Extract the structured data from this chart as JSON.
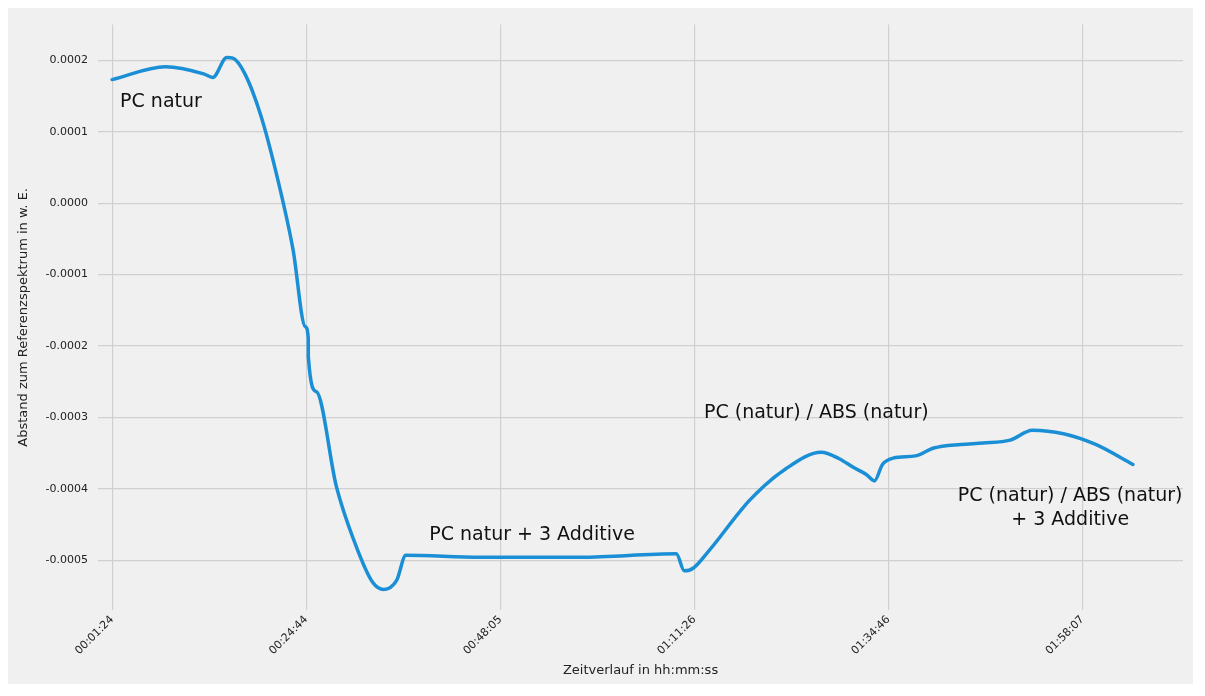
{
  "chart_data": {
    "type": "line",
    "xlabel": "Zeitverlauf in hh:mm:ss",
    "ylabel": "Abstand zum Referenzspektrum in w. E.",
    "x": [
      0.0233,
      0.1302,
      0.2068,
      0.2249,
      0.2531,
      0.2652,
      0.2894,
      0.3216,
      0.3539,
      0.3861,
      0.4103,
      0.4164,
      0.4165,
      0.4325,
      0.4728,
      0.5132,
      0.5455,
      0.5676,
      0.5938,
      0.612,
      0.7611,
      0.9627,
      1.1542,
      1.1703,
      1.1885,
      1.2207,
      1.3014,
      1.3739,
      1.4445,
      1.4808,
      1.509,
      1.5352,
      1.5514,
      1.5675,
      1.5897,
      1.634,
      1.6703,
      1.7248,
      1.7691,
      1.8235,
      1.8679,
      1.9304,
      1.9949,
      2.0695
    ],
    "series": [
      {
        "color": "#1a8fd6",
        "values": [
          0.000173,
          0.000191,
          0.000181,
          0.000176,
          0.000204,
          0.000203,
          0.000181,
          0.000122,
          3.7e-05,
          -6.6e-05,
          -0.000173,
          -0.000189,
          -0.000215,
          -0.000264,
          -0.000397,
          -0.000482,
          -0.000531,
          -0.000541,
          -0.000528,
          -0.000493,
          -0.000496,
          -0.000496,
          -0.000491,
          -0.000515,
          -0.000511,
          -0.000486,
          -0.000416,
          -0.000372,
          -0.000349,
          -0.000358,
          -0.00037,
          -0.00038,
          -0.000389,
          -0.000366,
          -0.000357,
          -0.000354,
          -0.000343,
          -0.000338,
          -0.000336,
          -0.000332,
          -0.000318,
          -0.000323,
          -0.000338,
          -0.000366
        ]
      }
    ],
    "xlim": [
      -0.005,
      2.17
    ],
    "ylim": [
      -0.00057,
      0.00025
    ],
    "xticks": [
      {
        "value": 0.02333,
        "label": "00:01:24"
      },
      {
        "value": 0.41222,
        "label": "00:24:44"
      },
      {
        "value": 0.80139,
        "label": "00:48:05"
      },
      {
        "value": 1.19056,
        "label": "01:11:26"
      },
      {
        "value": 1.57944,
        "label": "01:34:46"
      },
      {
        "value": 1.96861,
        "label": "01:58:07"
      }
    ],
    "yticks": [
      0.0002,
      0.0001,
      {
        "value": 0,
        "label": "0.0000"
      },
      -0.0001,
      -0.0002,
      -0.0003,
      -0.0004,
      -0.0005
    ],
    "annotations": [
      "PC natur",
      "PC natur + 3 Additive",
      "PC (natur) / ABS (natur)",
      "PC (natur) / ABS (natur)\n+ 3 Additive"
    ],
    "grid": true,
    "legend": false,
    "marker": "none",
    "line_style": "solid"
  }
}
